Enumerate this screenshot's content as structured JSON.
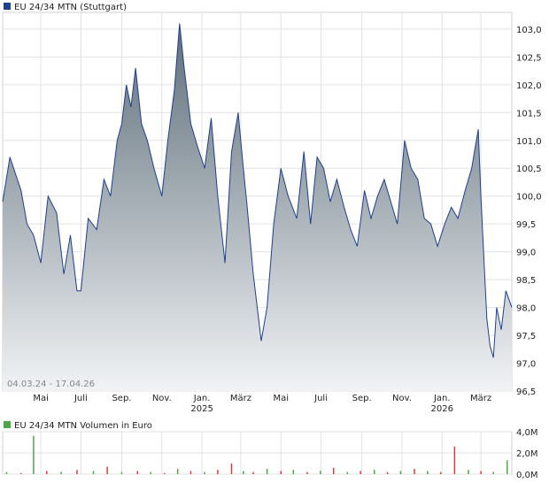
{
  "legend": {
    "price_label": "EU 24/34 MTN (Stuttgart)",
    "volume_label": "EU 24/34 MTN Volumen in Euro"
  },
  "colors": {
    "price_line": "#1f3f8f",
    "legend_price": "#1f3f8f",
    "legend_volume": "#4aa84a",
    "volume_up": "#4aa84a",
    "volume_down": "#d04040",
    "grid": "#e2e2e2",
    "area_top": "#5f6f7a",
    "area_bottom": "#f1f3f5"
  },
  "date_range": "04.03.24 - 17.04.26",
  "chart_data": [
    {
      "type": "area",
      "title": "EU 24/34 MTN (Stuttgart)",
      "ylim": [
        96.5,
        103.3
      ],
      "yticks": [
        "103,0",
        "102,5",
        "102,0",
        "101,5",
        "101,0",
        "100,5",
        "100,0",
        "99,5",
        "99,0",
        "98,5",
        "98,0",
        "97,5",
        "97,0",
        "96,5"
      ],
      "ytick_values": [
        103.0,
        102.5,
        102.0,
        101.5,
        101.0,
        100.5,
        100.0,
        99.5,
        99.0,
        98.5,
        98.0,
        97.5,
        97.0,
        96.5
      ],
      "xticks": [
        "Mai",
        "Juli",
        "Sep.",
        "Nov.",
        "Jan.",
        "März",
        "Mai",
        "Juli",
        "Sep.",
        "Nov.",
        "Jan.",
        "März"
      ],
      "xtick_dates": [
        "2024-05-01",
        "2024-07-01",
        "2024-09-01",
        "2024-11-01",
        "2025-01-01",
        "2025-03-01",
        "2025-05-01",
        "2025-07-01",
        "2025-09-01",
        "2025-11-01",
        "2026-01-01",
        "2026-03-01"
      ],
      "year_labels": [
        {
          "label": "2025",
          "date": "2025-01-01"
        },
        {
          "label": "2026",
          "date": "2026-01-01"
        }
      ],
      "x_range": [
        "2024-03-04",
        "2026-04-17"
      ],
      "grid": true,
      "series": [
        {
          "x": [
            "2024-03-04",
            "2024-03-15",
            "2024-04-01",
            "2024-04-10",
            "2024-04-20",
            "2024-05-01",
            "2024-05-12",
            "2024-05-25",
            "2024-06-05",
            "2024-06-15",
            "2024-06-25",
            "2024-07-01",
            "2024-07-12",
            "2024-07-25",
            "2024-08-05",
            "2024-08-15",
            "2024-08-25",
            "2024-09-01",
            "2024-09-08",
            "2024-09-15",
            "2024-09-22",
            "2024-10-01",
            "2024-10-10",
            "2024-10-20",
            "2024-11-01",
            "2024-11-10",
            "2024-11-20",
            "2024-11-28",
            "2024-12-05",
            "2024-12-15",
            "2024-12-25",
            "2025-01-05",
            "2025-01-15",
            "2025-01-25",
            "2025-02-05",
            "2025-02-15",
            "2025-02-25",
            "2025-03-04",
            "2025-03-10",
            "2025-03-20",
            "2025-04-01",
            "2025-04-10",
            "2025-04-20",
            "2025-05-01",
            "2025-05-12",
            "2025-05-25",
            "2025-06-05",
            "2025-06-15",
            "2025-06-25",
            "2025-07-05",
            "2025-07-15",
            "2025-07-25",
            "2025-08-05",
            "2025-08-15",
            "2025-08-25",
            "2025-09-05",
            "2025-09-15",
            "2025-09-25",
            "2025-10-05",
            "2025-10-15",
            "2025-10-25",
            "2025-11-05",
            "2025-11-15",
            "2025-11-25",
            "2025-12-05",
            "2025-12-15",
            "2025-12-25",
            "2026-01-05",
            "2026-01-15",
            "2026-01-25",
            "2026-02-05",
            "2026-02-15",
            "2026-02-25",
            "2026-03-01",
            "2026-03-05",
            "2026-03-10",
            "2026-03-15",
            "2026-03-20",
            "2026-03-25",
            "2026-04-01",
            "2026-04-08",
            "2026-04-17"
          ],
          "values": [
            99.9,
            100.7,
            100.1,
            99.5,
            99.3,
            98.8,
            100.0,
            99.7,
            98.6,
            99.3,
            98.3,
            98.3,
            99.6,
            99.4,
            100.3,
            100.0,
            101.0,
            101.3,
            102.0,
            101.6,
            102.3,
            101.3,
            101.0,
            100.5,
            100.0,
            101.0,
            101.9,
            103.1,
            102.3,
            101.3,
            100.9,
            100.5,
            101.4,
            100.0,
            98.8,
            100.8,
            101.5,
            100.6,
            99.9,
            98.6,
            97.4,
            98.0,
            99.5,
            100.5,
            100.0,
            99.6,
            100.8,
            99.5,
            100.7,
            100.5,
            99.9,
            100.3,
            99.8,
            99.4,
            99.1,
            100.1,
            99.6,
            100.0,
            100.3,
            99.9,
            99.5,
            101.0,
            100.5,
            100.3,
            99.6,
            99.5,
            99.1,
            99.5,
            99.8,
            99.6,
            100.1,
            100.5,
            101.2,
            100.0,
            99.0,
            97.8,
            97.3,
            97.1,
            98.0,
            97.6,
            98.3,
            98.0
          ]
        }
      ]
    },
    {
      "type": "bar",
      "title": "EU 24/34 MTN Volumen in Euro",
      "ylim": [
        0,
        4.0
      ],
      "yticks": [
        "4,0M",
        "2,0M",
        "0,0M"
      ],
      "ytick_values": [
        4.0,
        2.0,
        0.0
      ],
      "series": [
        {
          "name": "Volumen",
          "x": [
            "2024-03-10",
            "2024-04-01",
            "2024-04-20",
            "2024-05-10",
            "2024-06-01",
            "2024-06-25",
            "2024-07-20",
            "2024-08-10",
            "2024-09-01",
            "2024-09-25",
            "2024-10-15",
            "2024-11-05",
            "2024-11-25",
            "2024-12-15",
            "2025-01-05",
            "2025-01-25",
            "2025-02-15",
            "2025-03-05",
            "2025-03-20",
            "2025-04-10",
            "2025-05-01",
            "2025-05-20",
            "2025-06-10",
            "2025-06-30",
            "2025-07-20",
            "2025-08-10",
            "2025-08-30",
            "2025-09-20",
            "2025-10-10",
            "2025-10-30",
            "2025-11-20",
            "2025-12-10",
            "2025-12-30",
            "2026-01-20",
            "2026-02-10",
            "2026-03-01",
            "2026-03-20",
            "2026-04-10"
          ],
          "values": [
            0.2,
            0.1,
            3.6,
            0.3,
            0.2,
            0.4,
            0.3,
            0.7,
            0.2,
            0.3,
            0.2,
            0.1,
            0.5,
            0.3,
            0.2,
            0.4,
            1.0,
            0.3,
            0.2,
            0.5,
            0.3,
            0.4,
            0.2,
            0.3,
            0.6,
            0.2,
            0.3,
            0.4,
            0.2,
            0.3,
            0.5,
            0.3,
            0.2,
            2.6,
            0.4,
            0.3,
            0.2,
            1.3
          ],
          "direction": [
            "up",
            "down",
            "up",
            "down",
            "up",
            "down",
            "up",
            "down",
            "up",
            "down",
            "up",
            "down",
            "up",
            "down",
            "up",
            "down",
            "down",
            "up",
            "down",
            "up",
            "down",
            "up",
            "down",
            "up",
            "down",
            "up",
            "down",
            "up",
            "down",
            "up",
            "down",
            "up",
            "down",
            "down",
            "up",
            "down",
            "up",
            "up"
          ]
        }
      ]
    }
  ]
}
